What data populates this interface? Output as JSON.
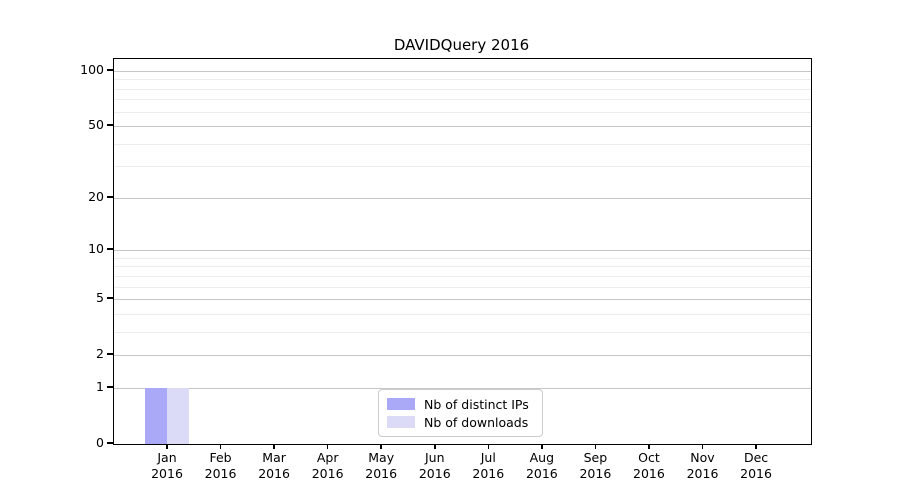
{
  "chart_data": {
    "type": "bar",
    "title": "DAVIDQuery 2016",
    "categories": [
      "Jan 2016",
      "Feb 2016",
      "Mar 2016",
      "Apr 2016",
      "May 2016",
      "Jun 2016",
      "Jul 2016",
      "Aug 2016",
      "Sep 2016",
      "Oct 2016",
      "Nov 2016",
      "Dec 2016"
    ],
    "x_tick_labels": [
      {
        "line1": "Jan",
        "line2": "2016"
      },
      {
        "line1": "Feb",
        "line2": "2016"
      },
      {
        "line1": "Mar",
        "line2": "2016"
      },
      {
        "line1": "Apr",
        "line2": "2016"
      },
      {
        "line1": "May",
        "line2": "2016"
      },
      {
        "line1": "Jun",
        "line2": "2016"
      },
      {
        "line1": "Jul",
        "line2": "2016"
      },
      {
        "line1": "Aug",
        "line2": "2016"
      },
      {
        "line1": "Sep",
        "line2": "2016"
      },
      {
        "line1": "Oct",
        "line2": "2016"
      },
      {
        "line1": "Nov",
        "line2": "2016"
      },
      {
        "line1": "Dec",
        "line2": "2016"
      }
    ],
    "series": [
      {
        "name": "Nb of distinct IPs",
        "color": "#a9a9f7",
        "values": [
          1,
          0,
          0,
          0,
          0,
          0,
          0,
          0,
          0,
          0,
          0,
          0
        ]
      },
      {
        "name": "Nb of downloads",
        "color": "#dbdbf8",
        "values": [
          1,
          0,
          0,
          0,
          0,
          0,
          0,
          0,
          0,
          0,
          0,
          0
        ]
      }
    ],
    "xlabel": "",
    "ylabel": "",
    "yscale": "log1p",
    "ylim": [
      0,
      115
    ],
    "y_major_ticks": [
      0,
      1,
      2,
      5,
      10,
      20,
      50,
      100
    ],
    "y_minor_gridlines": [
      3,
      4,
      6,
      7,
      8,
      9,
      30,
      40,
      60,
      70,
      80,
      90
    ],
    "grid": "horizontal",
    "legend_position": "lower center"
  },
  "colors": {
    "major_grid": "#c6c6c6",
    "minor_grid": "#ececec",
    "spine": "#000000",
    "background": "#ffffff",
    "legend_border": "#cccccc"
  }
}
